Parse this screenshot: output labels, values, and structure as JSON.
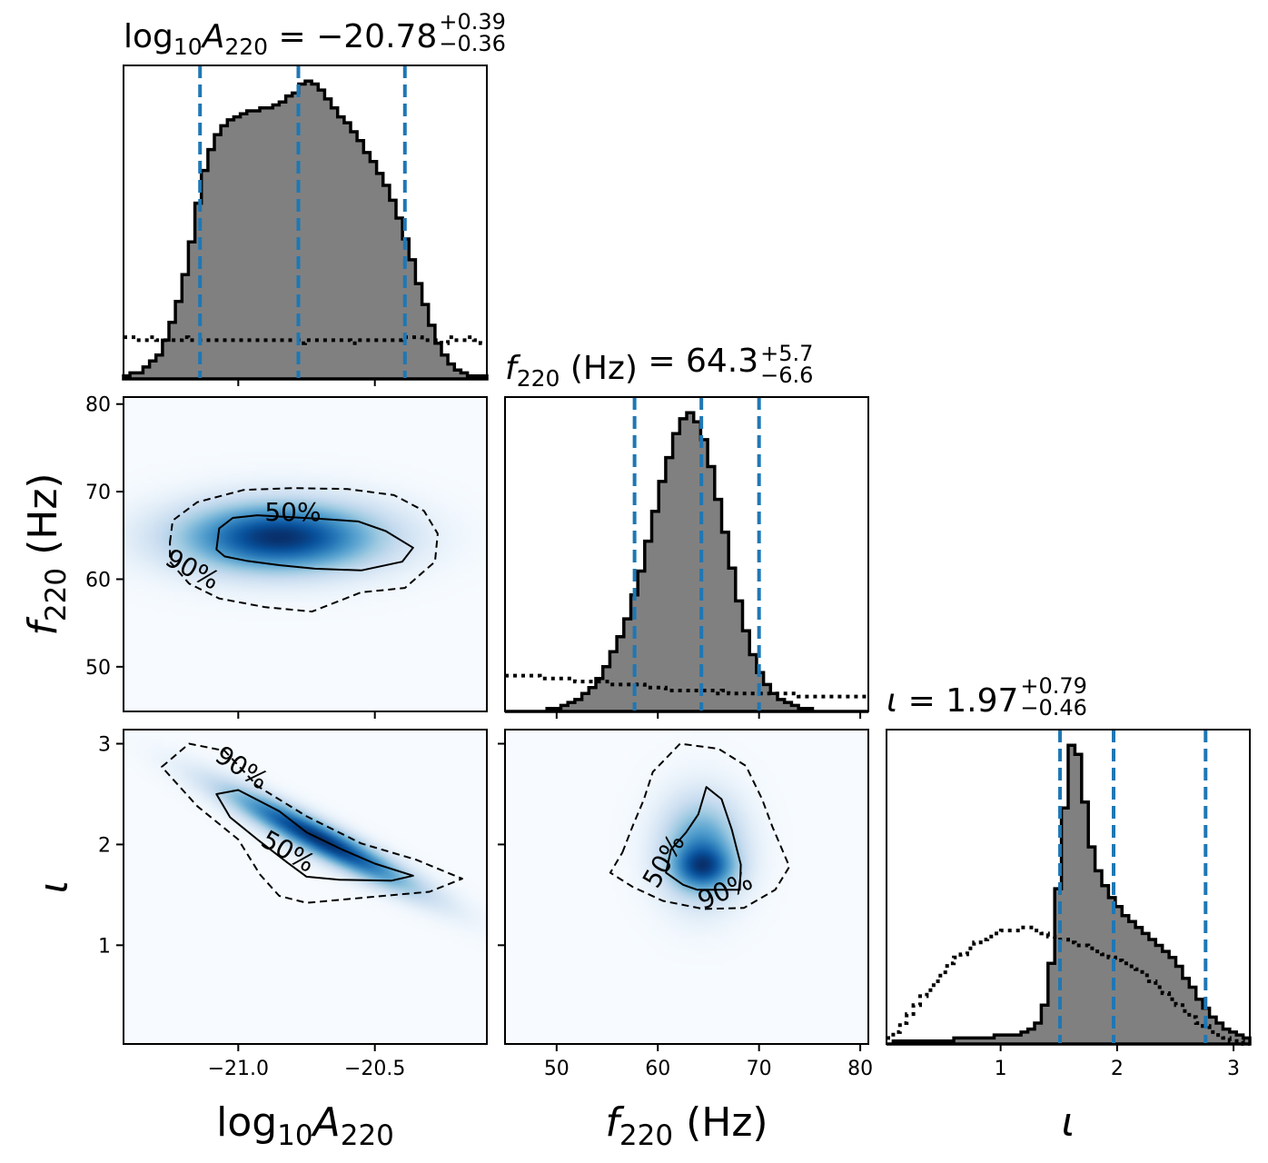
{
  "chart_data": {
    "type": "corner",
    "parameters": [
      {
        "key": "logA",
        "axis_label": "log10A220",
        "range": [
          -21.42,
          -20.09
        ],
        "title": {
          "label": "log10A220",
          "median": "-20.78",
          "plus": "+0.39",
          "minus": "-0.36"
        },
        "quantile_lines": [
          -21.14,
          -20.78,
          -20.39
        ],
        "ticks": [
          -21.0,
          -20.5
        ],
        "tick_labels": [
          "−21.0",
          "−20.5"
        ]
      },
      {
        "key": "f",
        "axis_label": "f220 (Hz)",
        "range": [
          44.9,
          80.8
        ],
        "title": {
          "label": "f220 (Hz)",
          "median": "64.3",
          "plus": "+5.7",
          "minus": "-6.6"
        },
        "quantile_lines": [
          57.7,
          64.3,
          70.0
        ],
        "ticks": [
          50,
          60,
          70,
          80
        ],
        "tick_labels": [
          "50",
          "60",
          "70",
          "80"
        ]
      },
      {
        "key": "iota",
        "axis_label": "ι",
        "range": [
          0.02,
          3.14
        ],
        "title": {
          "label": "ι",
          "median": "1.97",
          "plus": "+0.79",
          "minus": "-0.46"
        },
        "quantile_lines": [
          1.51,
          1.97,
          2.76
        ],
        "ticks": [
          1,
          2,
          3
        ],
        "tick_labels": [
          "1",
          "2",
          "3"
        ]
      }
    ],
    "diagonal": [
      {
        "param": "logA",
        "posterior_hist": [
          0.01,
          0.02,
          0.02,
          0.04,
          0.06,
          0.08,
          0.13,
          0.19,
          0.26,
          0.35,
          0.46,
          0.59,
          0.7,
          0.77,
          0.82,
          0.85,
          0.87,
          0.88,
          0.89,
          0.9,
          0.9,
          0.91,
          0.91,
          0.92,
          0.93,
          0.95,
          0.96,
          0.99,
          1.0,
          0.99,
          0.97,
          0.94,
          0.91,
          0.88,
          0.86,
          0.83,
          0.8,
          0.76,
          0.73,
          0.69,
          0.65,
          0.6,
          0.54,
          0.47,
          0.4,
          0.32,
          0.25,
          0.18,
          0.12,
          0.08,
          0.05,
          0.03,
          0.02,
          0.01,
          0.01,
          0.01
        ],
        "prior_hist": [
          0.14,
          0.14,
          0.13,
          0.13,
          0.14,
          0.13,
          0.13,
          0.13,
          0.13,
          0.14,
          0.13,
          0.13,
          0.13,
          0.13,
          0.13,
          0.13,
          0.13,
          0.13,
          0.13,
          0.13,
          0.13,
          0.13,
          0.13,
          0.13,
          0.13,
          0.13,
          0.13,
          0.12,
          0.13,
          0.13,
          0.13,
          0.13,
          0.13,
          0.13,
          0.13,
          0.12,
          0.13,
          0.13,
          0.13,
          0.13,
          0.13,
          0.13,
          0.13,
          0.14,
          0.14,
          0.14,
          0.13,
          0.13,
          0.13,
          0.12,
          0.14,
          0.13,
          0.13,
          0.14,
          0.13,
          0.12
        ]
      },
      {
        "param": "f",
        "posterior_hist": [
          0.0,
          0.0,
          0.0,
          0.0,
          0.0,
          0.0,
          0.01,
          0.01,
          0.02,
          0.03,
          0.04,
          0.06,
          0.08,
          0.11,
          0.15,
          0.2,
          0.25,
          0.31,
          0.39,
          0.47,
          0.57,
          0.67,
          0.77,
          0.85,
          0.93,
          0.98,
          1.0,
          0.97,
          0.91,
          0.82,
          0.71,
          0.6,
          0.48,
          0.37,
          0.27,
          0.19,
          0.13,
          0.09,
          0.06,
          0.04,
          0.03,
          0.02,
          0.01,
          0.01,
          0.0,
          0.0,
          0.0,
          0.0,
          0.0,
          0.0,
          0.0,
          0.0
        ],
        "prior_hist": [
          0.12,
          0.12,
          0.12,
          0.12,
          0.12,
          0.11,
          0.11,
          0.11,
          0.11,
          0.11,
          0.1,
          0.1,
          0.1,
          0.1,
          0.1,
          0.09,
          0.09,
          0.09,
          0.09,
          0.09,
          0.08,
          0.08,
          0.08,
          0.07,
          0.07,
          0.07,
          0.07,
          0.07,
          0.07,
          0.07,
          0.06,
          0.07,
          0.06,
          0.06,
          0.06,
          0.06,
          0.06,
          0.06,
          0.06,
          0.06,
          0.06,
          0.06,
          0.05,
          0.05,
          0.05,
          0.05,
          0.05,
          0.05,
          0.05,
          0.05,
          0.05,
          0.05
        ]
      },
      {
        "param": "iota",
        "posterior_hist": [
          0.0,
          0.01,
          0.01,
          0.01,
          0.01,
          0.01,
          0.01,
          0.01,
          0.01,
          0.01,
          0.02,
          0.02,
          0.02,
          0.02,
          0.02,
          0.02,
          0.03,
          0.03,
          0.03,
          0.03,
          0.04,
          0.05,
          0.07,
          0.13,
          0.27,
          0.52,
          0.79,
          1.0,
          0.97,
          0.81,
          0.66,
          0.58,
          0.53,
          0.49,
          0.46,
          0.43,
          0.41,
          0.39,
          0.37,
          0.35,
          0.33,
          0.31,
          0.29,
          0.26,
          0.22,
          0.19,
          0.15,
          0.12,
          0.09,
          0.07,
          0.05,
          0.04,
          0.03,
          0.02
        ],
        "prior_hist": [
          0.02,
          0.04,
          0.07,
          0.1,
          0.13,
          0.16,
          0.18,
          0.21,
          0.24,
          0.27,
          0.29,
          0.3,
          0.32,
          0.34,
          0.35,
          0.36,
          0.37,
          0.38,
          0.38,
          0.38,
          0.39,
          0.39,
          0.38,
          0.37,
          0.36,
          0.35,
          0.35,
          0.34,
          0.33,
          0.33,
          0.32,
          0.31,
          0.3,
          0.29,
          0.28,
          0.27,
          0.26,
          0.25,
          0.23,
          0.21,
          0.19,
          0.17,
          0.15,
          0.13,
          0.11,
          0.09,
          0.07,
          0.06,
          0.04,
          0.03,
          0.02,
          0.01,
          0.01,
          0.0
        ]
      }
    ],
    "off_diagonal": [
      {
        "x": "logA",
        "y": "f",
        "density_blobs": [
          {
            "cx": -20.85,
            "cy": 64.8,
            "sx": 0.24,
            "sy": 2.6,
            "rho": 0.0,
            "w": 1.0
          }
        ],
        "contours": [
          {
            "level": "50%",
            "style": "solid",
            "points": [
              [
                -21.08,
                63.4
              ],
              [
                -21.07,
                65.8
              ],
              [
                -21.02,
                67.0
              ],
              [
                -20.93,
                67.3
              ],
              [
                -20.82,
                67.1
              ],
              [
                -20.7,
                66.9
              ],
              [
                -20.56,
                66.6
              ],
              [
                -20.46,
                65.5
              ],
              [
                -20.36,
                63.6
              ],
              [
                -20.4,
                62.0
              ],
              [
                -20.55,
                61.0
              ],
              [
                -20.72,
                61.2
              ],
              [
                -20.85,
                61.6
              ],
              [
                -20.97,
                62.1
              ],
              [
                -21.05,
                62.6
              ],
              [
                -21.08,
                63.4
              ]
            ]
          },
          {
            "level": "90%",
            "style": "dashed",
            "points": [
              [
                -21.25,
                64.2
              ],
              [
                -21.24,
                66.7
              ],
              [
                -21.15,
                68.8
              ],
              [
                -20.98,
                70.2
              ],
              [
                -20.8,
                70.4
              ],
              [
                -20.6,
                70.3
              ],
              [
                -20.43,
                69.6
              ],
              [
                -20.32,
                67.8
              ],
              [
                -20.27,
                65.2
              ],
              [
                -20.28,
                62.0
              ],
              [
                -20.39,
                59.0
              ],
              [
                -20.55,
                58.5
              ],
              [
                -20.73,
                56.3
              ],
              [
                -20.9,
                56.8
              ],
              [
                -21.07,
                57.8
              ],
              [
                -21.18,
                59.5
              ],
              [
                -21.25,
                62.0
              ],
              [
                -21.25,
                64.2
              ]
            ]
          }
        ],
        "labels": [
          {
            "text": "50%",
            "x": -20.8,
            "y": 67.5,
            "angle": 0
          },
          {
            "text": "90%",
            "x": -21.17,
            "y": 61.0,
            "angle": 28
          }
        ]
      },
      {
        "x": "logA",
        "y": "iota",
        "density_blobs": [
          {
            "cx": -20.7,
            "cy": 2.05,
            "sx": 0.22,
            "sy": 0.32,
            "rho": -0.93,
            "w": 1.0
          }
        ],
        "contours": [
          {
            "level": "50%",
            "style": "solid",
            "points": [
              [
                -21.08,
                2.5
              ],
              [
                -21.0,
                2.54
              ],
              [
                -20.85,
                2.33
              ],
              [
                -20.75,
                2.12
              ],
              [
                -20.62,
                1.95
              ],
              [
                -20.5,
                1.81
              ],
              [
                -20.36,
                1.69
              ],
              [
                -20.44,
                1.64
              ],
              [
                -20.63,
                1.65
              ],
              [
                -20.75,
                1.68
              ],
              [
                -20.82,
                1.82
              ],
              [
                -20.93,
                2.05
              ],
              [
                -21.03,
                2.27
              ],
              [
                -21.08,
                2.5
              ]
            ]
          },
          {
            "level": "90%",
            "style": "dashed",
            "points": [
              [
                -21.28,
                2.77
              ],
              [
                -21.18,
                3.0
              ],
              [
                -21.05,
                2.93
              ],
              [
                -20.93,
                2.58
              ],
              [
                -20.75,
                2.28
              ],
              [
                -20.55,
                2.01
              ],
              [
                -20.35,
                1.85
              ],
              [
                -20.18,
                1.66
              ],
              [
                -20.3,
                1.53
              ],
              [
                -20.55,
                1.47
              ],
              [
                -20.75,
                1.42
              ],
              [
                -20.85,
                1.49
              ],
              [
                -20.92,
                1.7
              ],
              [
                -21.0,
                2.05
              ],
              [
                -21.15,
                2.38
              ],
              [
                -21.28,
                2.77
              ]
            ]
          }
        ],
        "labels": [
          {
            "text": "90%",
            "x": -20.99,
            "y": 2.75,
            "angle": 33
          },
          {
            "text": "50%",
            "x": -20.82,
            "y": 1.92,
            "angle": 30
          }
        ]
      },
      {
        "x": "f",
        "y": "iota",
        "density_blobs": [
          {
            "cx": 64.3,
            "cy": 1.95,
            "sx": 2.6,
            "sy": 0.33,
            "rho": 0.0,
            "w": 0.65
          },
          {
            "cx": 64.5,
            "cy": 1.77,
            "sx": 2.0,
            "sy": 0.14,
            "rho": 0.0,
            "w": 0.55
          }
        ],
        "contours": [
          {
            "level": "50%",
            "style": "solid",
            "points": [
              [
                64.0,
                2.3
              ],
              [
                64.8,
                2.57
              ],
              [
                66.3,
                2.45
              ],
              [
                67.3,
                2.15
              ],
              [
                68.2,
                1.8
              ],
              [
                68.1,
                1.55
              ],
              [
                66.0,
                1.55
              ],
              [
                63.9,
                1.55
              ],
              [
                62.5,
                1.6
              ],
              [
                60.8,
                1.72
              ],
              [
                61.3,
                1.95
              ],
              [
                62.8,
                2.12
              ],
              [
                64.0,
                2.3
              ]
            ]
          },
          {
            "level": "90%",
            "style": "dashed",
            "points": [
              [
                56.5,
                1.92
              ],
              [
                57.5,
                2.18
              ],
              [
                58.6,
                2.44
              ],
              [
                59.5,
                2.72
              ],
              [
                62.2,
                3.0
              ],
              [
                66.0,
                2.95
              ],
              [
                68.7,
                2.78
              ],
              [
                70.3,
                2.45
              ],
              [
                71.3,
                2.18
              ],
              [
                73.0,
                1.78
              ],
              [
                71.6,
                1.55
              ],
              [
                68.5,
                1.37
              ],
              [
                64.5,
                1.36
              ],
              [
                60.5,
                1.44
              ],
              [
                57.5,
                1.58
              ],
              [
                55.3,
                1.72
              ],
              [
                56.5,
                1.92
              ]
            ]
          }
        ],
        "labels": [
          {
            "text": "50%",
            "x": 60.7,
            "y": 1.83,
            "angle": -60
          },
          {
            "text": "90%",
            "x": 66.7,
            "y": 1.53,
            "angle": -24
          }
        ]
      }
    ],
    "colors": {
      "posterior_fill": "#808080",
      "posterior_edge": "#000000",
      "quantile_line": "#1f77b4",
      "density_cmap": "Blues",
      "prior_line": "#000000"
    },
    "grid": false,
    "legend": "none"
  }
}
